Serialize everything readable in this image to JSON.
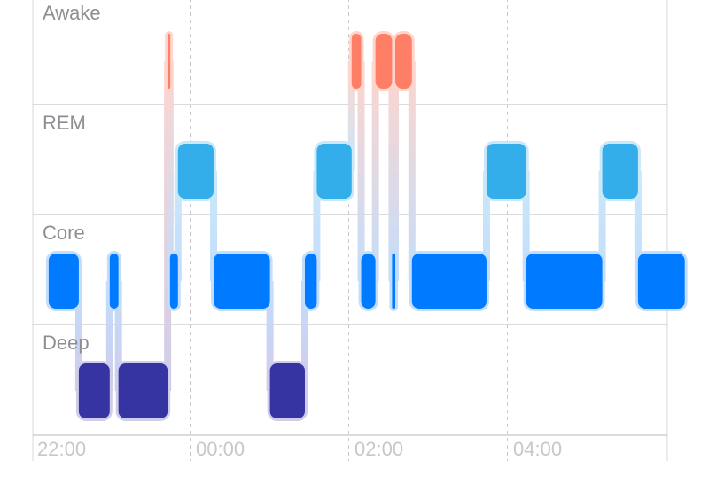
{
  "chart_data": {
    "type": "sleep-stages",
    "stages": [
      {
        "name": "Awake",
        "color": "#ff7f66",
        "light": "#ffd5cc"
      },
      {
        "name": "REM",
        "color": "#34aeea",
        "light": "#c9e8fa"
      },
      {
        "name": "Core",
        "color": "#007aff",
        "light": "#c3ddfb"
      },
      {
        "name": "Deep",
        "color": "#3634a3",
        "light": "#cfcdec"
      }
    ],
    "x_ticks": [
      "22:00",
      "00:00",
      "02:00",
      "04:00"
    ],
    "x_range_hours": [
      -2.0,
      5.95
    ],
    "grid": true,
    "segments": [
      {
        "stage": "Core",
        "start": -1.8,
        "end": -1.42
      },
      {
        "stage": "Deep",
        "start": -1.42,
        "end": -1.03
      },
      {
        "stage": "Core",
        "start": -1.03,
        "end": -0.92
      },
      {
        "stage": "Deep",
        "start": -0.92,
        "end": -0.3
      },
      {
        "stage": "Awake",
        "start": -0.3,
        "end": -0.27
      },
      {
        "stage": "Core",
        "start": -0.27,
        "end": -0.17
      },
      {
        "stage": "REM",
        "start": -0.17,
        "end": 0.28
      },
      {
        "stage": "Core",
        "start": 0.28,
        "end": 0.99
      },
      {
        "stage": "Deep",
        "start": 0.99,
        "end": 1.43
      },
      {
        "stage": "Core",
        "start": 1.43,
        "end": 1.58
      },
      {
        "stage": "REM",
        "start": 1.58,
        "end": 2.02
      },
      {
        "stage": "Awake",
        "start": 2.02,
        "end": 2.14
      },
      {
        "stage": "Core",
        "start": 2.14,
        "end": 2.32
      },
      {
        "stage": "Awake",
        "start": 2.32,
        "end": 2.53
      },
      {
        "stage": "Core",
        "start": 2.53,
        "end": 2.57
      },
      {
        "stage": "Awake",
        "start": 2.57,
        "end": 2.78
      },
      {
        "stage": "Core",
        "start": 2.78,
        "end": 3.72
      },
      {
        "stage": "REM",
        "start": 3.72,
        "end": 4.22
      },
      {
        "stage": "Core",
        "start": 4.22,
        "end": 5.18
      },
      {
        "stage": "REM",
        "start": 5.18,
        "end": 5.63
      },
      {
        "stage": "Core",
        "start": 5.63,
        "end": 6.22
      }
    ]
  }
}
